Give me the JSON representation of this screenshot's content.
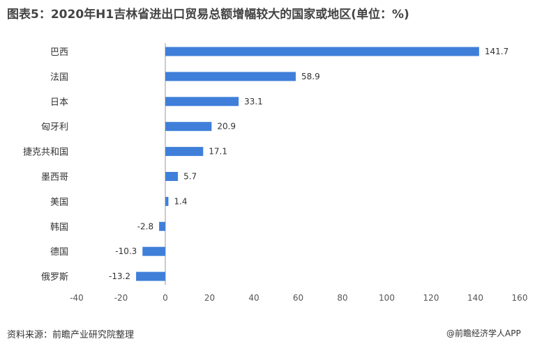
{
  "chart_data": {
    "type": "bar",
    "orientation": "horizontal",
    "title": "图表5：2020年H1吉林省进出口贸易总额增幅较大的国家或地区(单位：%)",
    "categories": [
      "巴西",
      "法国",
      "日本",
      "匈牙利",
      "捷克共和国",
      "墨西哥",
      "美国",
      "韩国",
      "德国",
      "俄罗斯"
    ],
    "values": [
      141.7,
      58.9,
      33.1,
      20.9,
      17.1,
      5.7,
      1.4,
      -2.8,
      -10.3,
      -13.2
    ],
    "xlim": [
      -40,
      160
    ],
    "xticks": [
      -40,
      -20,
      0,
      20,
      40,
      60,
      80,
      100,
      120,
      140,
      160
    ],
    "xlabel": "",
    "ylabel": "",
    "bar_color": "#3f7fd9",
    "grid": false,
    "legend": "none"
  },
  "footer": {
    "source": "资料来源：前瞻产业研究院整理",
    "credit": "@前瞻经济学人APP"
  }
}
